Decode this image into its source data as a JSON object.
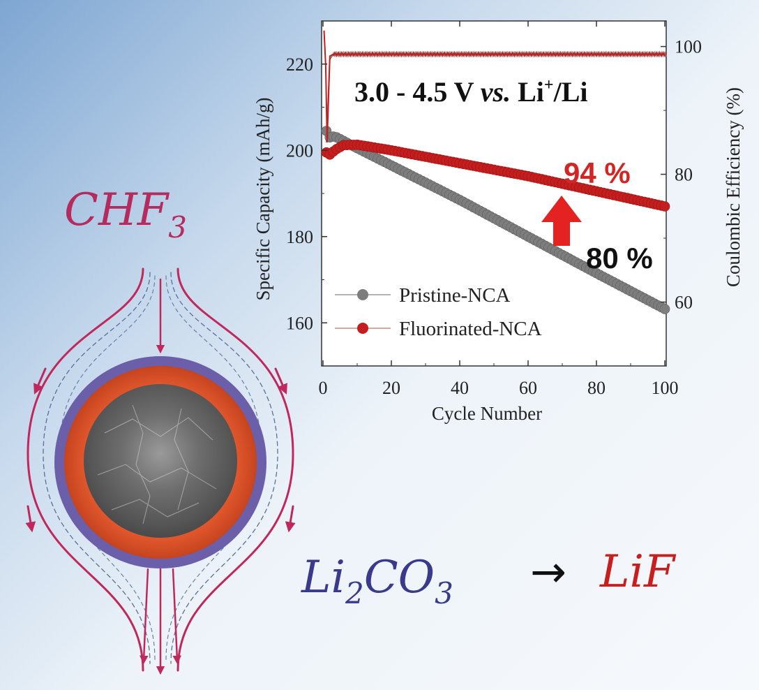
{
  "chemistry": {
    "reagent": "CHF",
    "reagent_sub": "3",
    "reactant_main": "Li",
    "reactant_sub1": "2",
    "reactant_mid": "CO",
    "reactant_sub2": "3",
    "arrow": "→",
    "product": "LiF",
    "colors": {
      "reagent": "#b52b5e",
      "reactant": "#3a3a8c",
      "product": "#c81e1e"
    }
  },
  "chart_data": {
    "type": "line",
    "condition_main": "3.0 - 4.5 V ",
    "condition_italic": "vs.",
    "condition_species": " Li",
    "condition_sup": "+",
    "condition_tail": "/Li",
    "xlabel": "Cycle Number",
    "ylabel": "Specific Capacity (mAh/g)",
    "y2label": "Coulombic Efficiency (%)",
    "xlim": [
      0,
      100
    ],
    "ylim": [
      150,
      230
    ],
    "y2lim": [
      50,
      104
    ],
    "xticks": [
      "0",
      "20",
      "40",
      "60",
      "80",
      "100"
    ],
    "yticks": [
      "160",
      "180",
      "200",
      "220"
    ],
    "y2ticks": [
      "60",
      "80",
      "100"
    ],
    "legend_position": "bottom-left",
    "series": [
      {
        "name": "Pristine-NCA",
        "color": "#7d7d7d",
        "capacity": {
          "x": [
            1,
            2,
            3,
            4,
            5,
            10,
            20,
            40,
            60,
            80,
            100
          ],
          "y": [
            204.5,
            203,
            203.2,
            203,
            202.6,
            200.5,
            196.5,
            188.5,
            180,
            171.5,
            163.2
          ]
        },
        "efficiency": {
          "x": [
            1,
            2,
            3,
            5,
            10,
            40,
            70,
            100
          ],
          "y": [
            85,
            98,
            98.8,
            98.8,
            98.8,
            98.8,
            98.8,
            98.8
          ]
        }
      },
      {
        "name": "Fluorinated-NCA",
        "color": "#c41e1e",
        "capacity": {
          "x": [
            1,
            2,
            3,
            4,
            6,
            10,
            20,
            40,
            60,
            80,
            100
          ],
          "y": [
            199.5,
            199,
            199.7,
            200.3,
            201.2,
            201.3,
            200,
            197,
            194,
            190.5,
            187
          ]
        },
        "efficiency": {
          "x": [
            0.3,
            0.8,
            1.2,
            2,
            3,
            10,
            50,
            100
          ],
          "y": [
            102.5,
            97,
            85,
            98.5,
            98.8,
            98.8,
            98.8,
            98.8
          ]
        }
      }
    ],
    "annotations": [
      {
        "text": "94 %",
        "color": "#d42525"
      },
      {
        "text": "80 %",
        "color": "#111111"
      }
    ]
  }
}
